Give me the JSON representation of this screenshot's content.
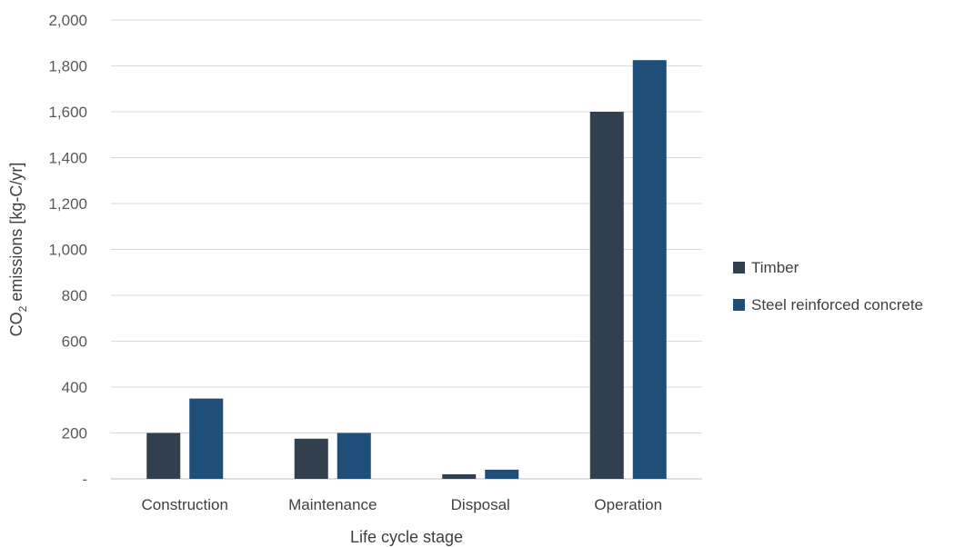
{
  "chart_data": {
    "type": "bar",
    "title": "",
    "categories": [
      "Construction",
      "Maintenance",
      "Disposal",
      "Operation"
    ],
    "series": [
      {
        "name": "Timber",
        "color": "#323f4f",
        "values": [
          200,
          175,
          20,
          1600
        ]
      },
      {
        "name": "Steel reinforced concrete",
        "color": "#1f4e79",
        "values": [
          350,
          200,
          40,
          1825
        ]
      }
    ],
    "xlabel": "Life cycle stage",
    "ylabel": {
      "prefix": "CO",
      "subscript": "2",
      "suffix": " emissions [kg-C/yr]"
    },
    "ylim": [
      0,
      2000
    ],
    "yticks": [
      0,
      200,
      400,
      600,
      800,
      1000,
      1200,
      1400,
      1600,
      1800,
      2000
    ],
    "ytick_labels": [
      "-",
      "200",
      "400",
      "600",
      "800",
      "1,000",
      "1,200",
      "1,400",
      "1,600",
      "1,800",
      "2,000"
    ],
    "grid": true,
    "legend_position": "right"
  }
}
